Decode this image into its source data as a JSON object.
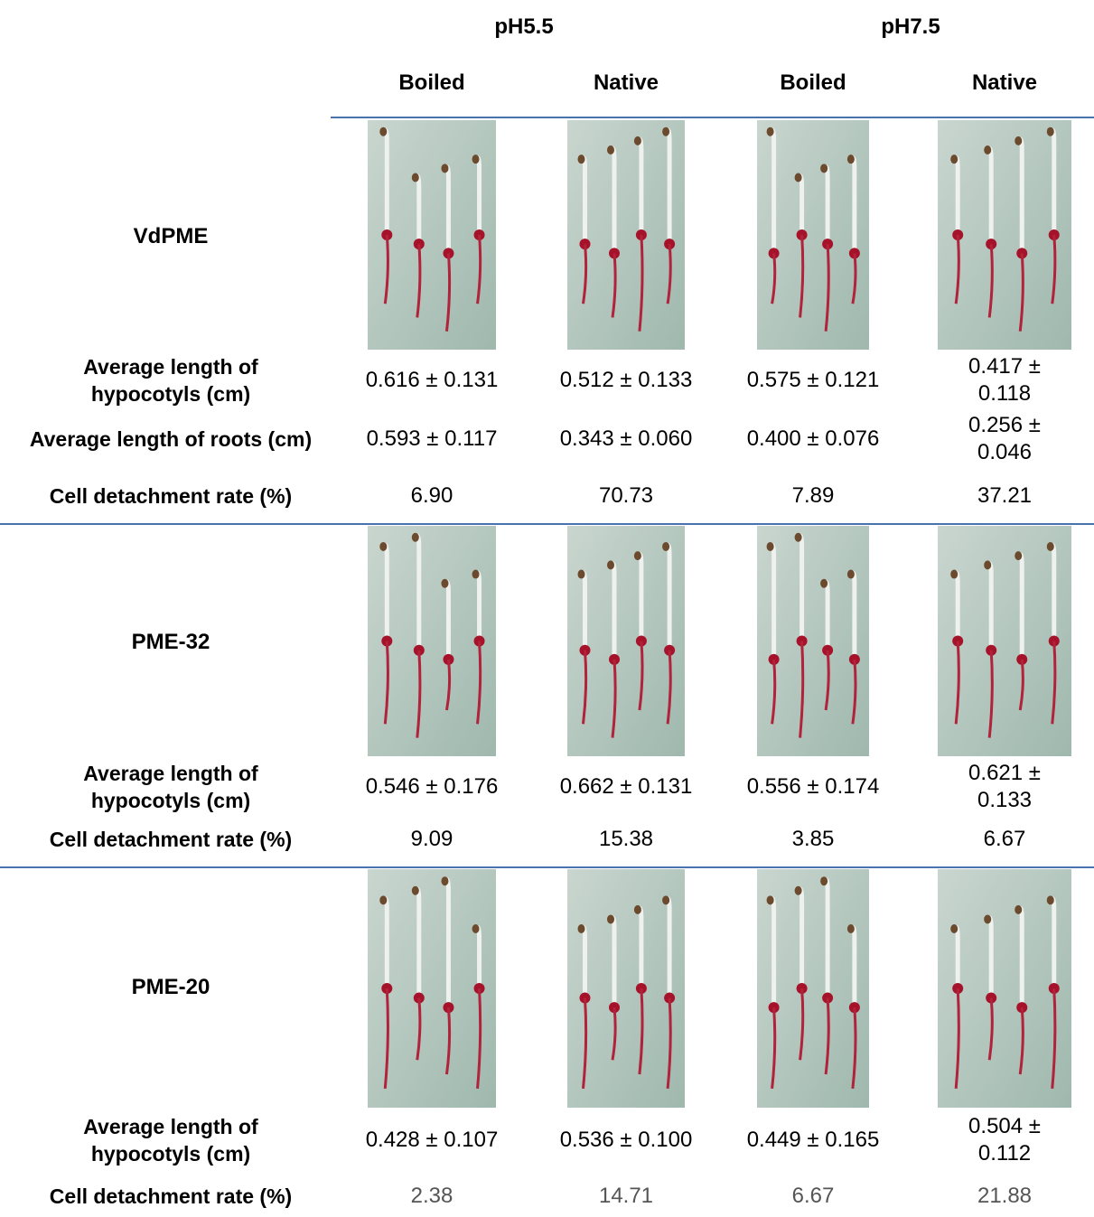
{
  "header": {
    "groups": [
      "pH5.5",
      "pH7.5"
    ],
    "columns": [
      "Boiled",
      "Native",
      "Boiled",
      "Native"
    ]
  },
  "sections": [
    {
      "name": "VdPME",
      "rows": [
        {
          "label": "Average length of hypocotyls (cm)",
          "values": [
            "0.616 ± 0.131",
            "0.512 ± 0.133",
            "0.575 ± 0.121",
            "0.417 ± 0.118"
          ]
        },
        {
          "label": "Average length of roots (cm)",
          "values": [
            "0.593 ± 0.117",
            "0.343 ± 0.060",
            "0.400 ± 0.076",
            "0.256 ± 0.046"
          ]
        },
        {
          "label": "Cell detachment rate (%)",
          "values": [
            "6.90",
            "70.73",
            "7.89",
            "37.21"
          ]
        }
      ]
    },
    {
      "name": "PME-32",
      "rows": [
        {
          "label": "Average length of hypocotyls (cm)",
          "values": [
            "0.546 ± 0.176",
            "0.662 ± 0.131",
            "0.556 ± 0.174",
            "0.621 ± 0.133"
          ]
        },
        {
          "label": "Cell detachment rate (%)",
          "values": [
            "9.09",
            "15.38",
            "3.85",
            "6.67"
          ]
        }
      ]
    },
    {
      "name": "PME-20",
      "rows": [
        {
          "label": "Average length of hypocotyls (cm)",
          "values": [
            "0.428 ± 0.107",
            "0.536 ± 0.100",
            "0.449 ± 0.165",
            "0.504 ± 0.112"
          ]
        },
        {
          "label": "Cell detachment rate (%)",
          "values": [
            "2.38",
            "14.71",
            "6.67",
            "21.88"
          ]
        }
      ]
    }
  ]
}
